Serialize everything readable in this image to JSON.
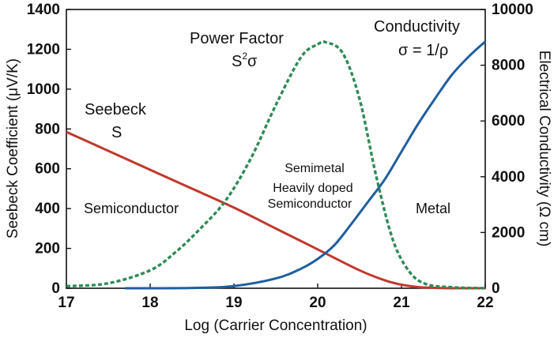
{
  "chart_data": {
    "type": "line",
    "xlabel": "Log (Carrier Concentration)",
    "ylabel_left": "Seebeck Coefficient (μV/K)",
    "ylabel_right": "Electrical Conductivity (Ω cm)",
    "xlim": [
      17,
      22
    ],
    "ylim_left": [
      0,
      1400
    ],
    "ylim_right": [
      0,
      10000
    ],
    "x_ticks": [
      "17",
      "18",
      "19",
      "20",
      "21",
      "22"
    ],
    "y_left_ticks": [
      "0",
      "200",
      "400",
      "600",
      "800",
      "1000",
      "1200",
      "1400"
    ],
    "y_right_ticks": [
      "0",
      "2000",
      "4000",
      "6000",
      "8000",
      "10000"
    ],
    "grid": false,
    "series": [
      {
        "name": "Seebeck S",
        "axis": "left",
        "color": "#c0392b",
        "style": "solid",
        "x": [
          17.0,
          17.5,
          18.0,
          18.5,
          19.0,
          19.5,
          20.0,
          20.5,
          20.8,
          21.0,
          21.2,
          21.4,
          21.6,
          22.0
        ],
        "y": [
          785,
          690,
          595,
          500,
          405,
          300,
          195,
          90,
          40,
          18,
          6,
          2,
          0,
          0
        ]
      },
      {
        "name": "Power Factor S²σ",
        "axis": "left",
        "color": "#2e8b57",
        "style": "dashed",
        "x": [
          17.0,
          17.5,
          18.0,
          18.3,
          18.6,
          18.9,
          19.2,
          19.5,
          19.8,
          20.0,
          20.1,
          20.3,
          20.5,
          20.7,
          20.9,
          21.1,
          21.3,
          21.6,
          22.0
        ],
        "y": [
          10,
          25,
          90,
          180,
          300,
          440,
          650,
          920,
          1160,
          1225,
          1235,
          1180,
          950,
          560,
          240,
          80,
          20,
          5,
          0
        ]
      },
      {
        "name": "Conductivity σ = 1/ρ",
        "axis": "right",
        "color": "#1f5f9e",
        "style": "solid",
        "x": [
          17.7,
          18.5,
          19.0,
          19.5,
          19.8,
          20.0,
          20.2,
          20.4,
          20.6,
          20.8,
          21.0,
          21.2,
          21.4,
          21.6,
          21.8,
          22.0
        ],
        "y": [
          0,
          10,
          80,
          350,
          700,
          1050,
          1550,
          2300,
          3100,
          3900,
          4900,
          5900,
          6800,
          7650,
          8300,
          8850
        ]
      }
    ]
  },
  "annotations": {
    "seebeck_line1": "Seebeck",
    "seebeck_line2": "S",
    "power_factor_line1": "Power Factor",
    "power_factor_s": "S",
    "power_factor_sup": "2",
    "power_factor_sigma": "σ",
    "conductivity_line1": "Conductivity",
    "conductivity_line2": "σ = 1/ρ",
    "semiconductor": "Semiconductor",
    "semimetal": "Semimetal",
    "heavily_doped": "Heavily doped",
    "heavily_doped_semiconductor": "Semiconductor",
    "metal": "Metal"
  }
}
